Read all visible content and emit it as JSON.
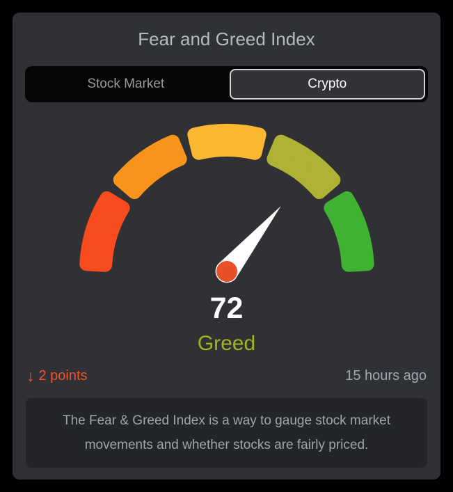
{
  "title": "Fear and Greed Index",
  "tabs": [
    {
      "label": "Stock Market",
      "selected": false
    },
    {
      "label": "Crypto",
      "selected": true
    }
  ],
  "chart_data": {
    "type": "gauge",
    "min": 0,
    "max": 100,
    "value": 72,
    "label": "Greed",
    "label_color": "#a3b320",
    "start_angle": 180,
    "end_angle": 0,
    "segments": [
      {
        "from": 0,
        "to": 20,
        "color": "#f84b1e"
      },
      {
        "from": 20,
        "to": 40,
        "color": "#f8931c"
      },
      {
        "from": 40,
        "to": 60,
        "color": "#fbb831"
      },
      {
        "from": 60,
        "to": 80,
        "color": "#afb335"
      },
      {
        "from": 80,
        "to": 100,
        "color": "#40b233"
      }
    ],
    "needle_color": "#ffffff",
    "pivot_color": "#e8502b"
  },
  "change": {
    "arrow_glyph": "↓",
    "direction": "down",
    "text": "2 points",
    "color": "#f0522a"
  },
  "updated": "15 hours ago",
  "description": "The Fear & Greed Index is a way to gauge stock market movements and whether stocks are fairly priced."
}
